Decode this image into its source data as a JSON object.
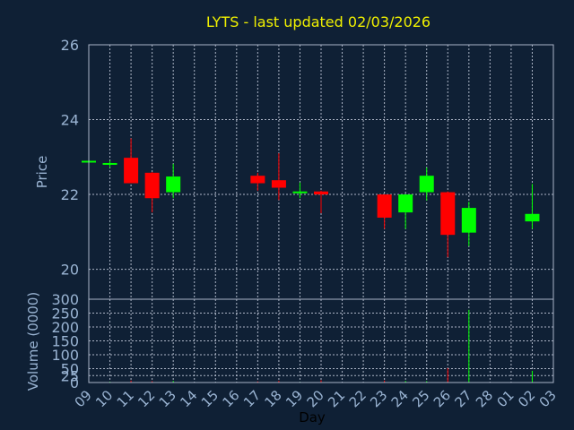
{
  "chart_data": {
    "type": "candlestick",
    "title": "LYTS - last updated 02/03/2026",
    "xlabel": "Day",
    "ylabel": "Price",
    "volume_label": "Volume (0000)",
    "ylim": [
      19.2,
      26
    ],
    "yticks": [
      20,
      22,
      24,
      26
    ],
    "volume_ylim": [
      0,
      300
    ],
    "volume_ticks": [
      0,
      25,
      50,
      100,
      150,
      200,
      250,
      300
    ],
    "grid": true,
    "days": [
      "09",
      "10",
      "11",
      "12",
      "13",
      "14",
      "15",
      "16",
      "17",
      "18",
      "19",
      "20",
      "21",
      "22",
      "23",
      "24",
      "25",
      "26",
      "27",
      "28",
      "01",
      "02",
      "03"
    ],
    "colors": {
      "up": "#00ff00",
      "down": "#ff0000",
      "background": "#0f2035",
      "title": "#f0f000",
      "axis_text": "#9ab4d3"
    },
    "candles": [
      {
        "day": "09",
        "open": 22.9,
        "high": 22.92,
        "low": 22.88,
        "close": 22.9,
        "volume": 1,
        "dir": "up"
      },
      {
        "day": "10",
        "open": 22.82,
        "high": 22.9,
        "low": 22.72,
        "close": 22.84,
        "volume": 3,
        "dir": "up"
      },
      {
        "day": "11",
        "open": 22.98,
        "high": 23.5,
        "low": 22.3,
        "close": 22.3,
        "volume": 7,
        "dir": "down"
      },
      {
        "day": "12",
        "open": 22.58,
        "high": 22.6,
        "low": 21.52,
        "close": 21.9,
        "volume": 5,
        "dir": "down"
      },
      {
        "day": "13",
        "open": 22.06,
        "high": 22.82,
        "low": 21.9,
        "close": 22.48,
        "volume": 6,
        "dir": "up"
      },
      {
        "day": "17",
        "open": 22.5,
        "high": 22.58,
        "low": 22.1,
        "close": 22.3,
        "volume": 4,
        "dir": "down"
      },
      {
        "day": "18",
        "open": 22.38,
        "high": 23.1,
        "low": 21.85,
        "close": 22.18,
        "volume": 6,
        "dir": "down"
      },
      {
        "day": "19",
        "open": 22.04,
        "high": 22.32,
        "low": 21.9,
        "close": 22.08,
        "volume": 2,
        "dir": "up"
      },
      {
        "day": "20",
        "open": 22.08,
        "high": 22.1,
        "low": 21.5,
        "close": 22.0,
        "volume": 8,
        "dir": "down"
      },
      {
        "day": "23",
        "open": 22.0,
        "high": 22.0,
        "low": 21.08,
        "close": 21.38,
        "volume": 7,
        "dir": "down"
      },
      {
        "day": "24",
        "open": 21.52,
        "high": 22.0,
        "low": 21.08,
        "close": 22.0,
        "volume": 6,
        "dir": "up"
      },
      {
        "day": "25",
        "open": 22.06,
        "high": 22.72,
        "low": 21.84,
        "close": 22.5,
        "volume": 5,
        "dir": "up"
      },
      {
        "day": "26",
        "open": 22.06,
        "high": 22.08,
        "low": 20.32,
        "close": 20.92,
        "volume": 52,
        "dir": "down"
      },
      {
        "day": "27",
        "open": 20.98,
        "high": 21.8,
        "low": 20.62,
        "close": 21.64,
        "volume": 262,
        "dir": "up"
      },
      {
        "day": "02",
        "open": 21.28,
        "high": 22.28,
        "low": 21.08,
        "close": 21.48,
        "volume": 42,
        "dir": "up"
      }
    ]
  }
}
